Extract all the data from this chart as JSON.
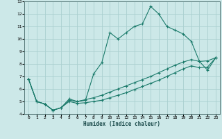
{
  "xlabel": "Humidex (Indice chaleur)",
  "ylabel": "",
  "bg_color": "#cce8e8",
  "grid_color": "#aad0d0",
  "line_color": "#1a7a6a",
  "xlim": [
    -0.5,
    23.5
  ],
  "ylim": [
    4,
    13
  ],
  "xticks": [
    0,
    1,
    2,
    3,
    4,
    5,
    6,
    7,
    8,
    9,
    10,
    11,
    12,
    13,
    14,
    15,
    16,
    17,
    18,
    19,
    20,
    21,
    22,
    23
  ],
  "yticks": [
    4,
    5,
    6,
    7,
    8,
    9,
    10,
    11,
    12,
    13
  ],
  "series1_x": [
    0,
    1,
    2,
    3,
    4,
    5,
    6,
    7,
    8,
    9,
    10,
    11,
    12,
    13,
    14,
    15,
    16,
    17,
    18,
    19,
    20,
    21,
    22,
    23
  ],
  "series1_y": [
    6.8,
    5.0,
    4.8,
    4.3,
    4.5,
    5.2,
    5.0,
    5.1,
    7.2,
    8.1,
    10.5,
    10.0,
    10.5,
    11.0,
    11.2,
    12.6,
    12.0,
    11.0,
    10.7,
    10.4,
    9.8,
    8.2,
    7.5,
    8.5
  ],
  "series2_x": [
    0,
    1,
    2,
    3,
    4,
    5,
    6,
    7,
    8,
    9,
    10,
    11,
    12,
    13,
    14,
    15,
    16,
    17,
    18,
    19,
    20,
    21,
    22,
    23
  ],
  "series2_y": [
    6.8,
    5.0,
    4.8,
    4.3,
    4.5,
    5.1,
    5.0,
    5.15,
    5.3,
    5.5,
    5.75,
    6.0,
    6.25,
    6.5,
    6.75,
    7.0,
    7.3,
    7.6,
    7.9,
    8.15,
    8.35,
    8.2,
    8.25,
    8.5
  ],
  "series3_x": [
    0,
    1,
    2,
    3,
    4,
    5,
    6,
    7,
    8,
    9,
    10,
    11,
    12,
    13,
    14,
    15,
    16,
    17,
    18,
    19,
    20,
    21,
    22,
    23
  ],
  "series3_y": [
    6.8,
    5.0,
    4.8,
    4.3,
    4.5,
    5.0,
    4.85,
    4.9,
    5.0,
    5.1,
    5.3,
    5.5,
    5.7,
    5.95,
    6.2,
    6.45,
    6.7,
    7.0,
    7.3,
    7.6,
    7.85,
    7.7,
    7.75,
    8.5
  ]
}
